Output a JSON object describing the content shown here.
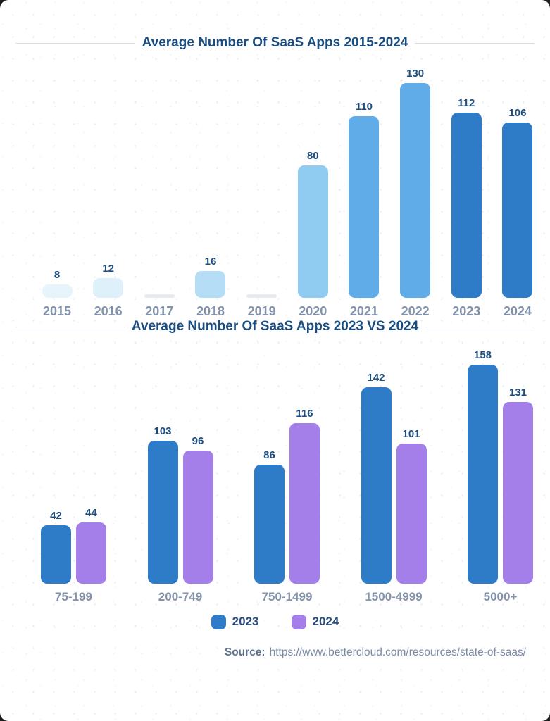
{
  "page": {
    "card_background": "#ffffff",
    "accent_navy": "#1a4e82",
    "axis_label_color": "#8292aa"
  },
  "chart_data": [
    {
      "type": "bar",
      "title": "Average Number Of SaaS Apps 2015-2024",
      "categories": [
        "2015",
        "2016",
        "2017",
        "2018",
        "2019",
        "2020",
        "2021",
        "2022",
        "2023",
        "2024"
      ],
      "values": [
        8,
        12,
        null,
        16,
        null,
        80,
        110,
        130,
        112,
        106
      ],
      "bar_colors": [
        "#e6f4fc",
        "#def0fa",
        "#e7eaf0",
        "#b5ddf6",
        "#e7eaf0",
        "#90cbf1",
        "#5face8",
        "#5face8",
        "#2e7cc8",
        "#2e7cc8"
      ],
      "no_data_color": "#e7eaf0",
      "xlabel": "",
      "ylabel": "",
      "ylim": [
        0,
        130
      ],
      "grid": false,
      "data_labels": true
    },
    {
      "type": "bar",
      "title": "Average Number Of SaaS Apps 2023 VS 2024",
      "categories": [
        "75-199",
        "200-749",
        "750-1499",
        "1500-4999",
        "5000+"
      ],
      "series": [
        {
          "name": "2023",
          "color": "#2e7cc8",
          "values": [
            42,
            103,
            86,
            142,
            158
          ]
        },
        {
          "name": "2024",
          "color": "#a47fe9",
          "values": [
            44,
            96,
            116,
            101,
            131
          ]
        }
      ],
      "xlabel": "",
      "ylabel": "",
      "ylim": [
        0,
        158
      ],
      "grid": false,
      "data_labels": true,
      "legend_position": "bottom"
    }
  ],
  "legend": {
    "items": [
      {
        "label": "2023",
        "color": "#2e7cc8"
      },
      {
        "label": "2024",
        "color": "#a47fe9"
      }
    ]
  },
  "source": {
    "label": "Source:",
    "url": "https://www.bettercloud.com/resources/state-of-saas/"
  }
}
